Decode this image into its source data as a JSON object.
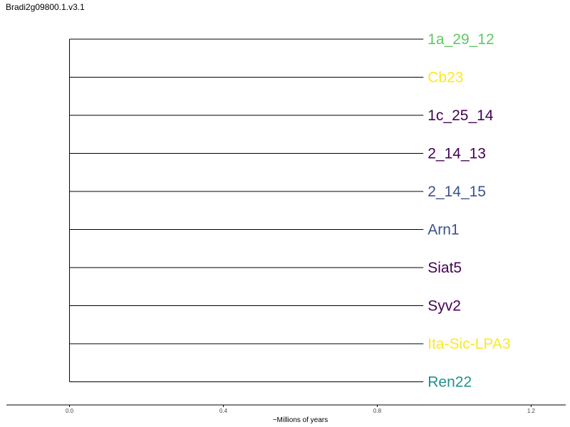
{
  "title": "Bradi2g09800.1.v3.1",
  "chart_data": {
    "type": "dendrogram",
    "title": "Bradi2g09800.1.v3.1",
    "xlabel": "~Millions of years",
    "xlim": [
      -0.164,
      1.29
    ],
    "x_ticks": [
      {
        "value": 0.0,
        "label": "0.0"
      },
      {
        "value": 0.4,
        "label": "0.4"
      },
      {
        "value": 0.8,
        "label": "0.8"
      },
      {
        "value": 1.2,
        "label": "1.2"
      }
    ],
    "root_x": 0.0,
    "tips": [
      {
        "name": "1a_29_12",
        "branch_end": 0.92,
        "color": "#5ec962"
      },
      {
        "name": "Cb23",
        "branch_end": 0.92,
        "color": "#fde725"
      },
      {
        "name": "1c_25_14",
        "branch_end": 0.92,
        "color": "#440154"
      },
      {
        "name": "2_14_13",
        "branch_end": 0.92,
        "color": "#440154"
      },
      {
        "name": "2_14_15",
        "branch_end": 0.92,
        "color": "#3b528b"
      },
      {
        "name": "Arn1",
        "branch_end": 0.92,
        "color": "#3b528b"
      },
      {
        "name": "Siat5",
        "branch_end": 0.92,
        "color": "#440154"
      },
      {
        "name": "Syv2",
        "branch_end": 0.92,
        "color": "#440154"
      },
      {
        "name": "Ita-Sic-LPA3",
        "branch_end": 0.92,
        "color": "#fde725"
      },
      {
        "name": "Ren22",
        "branch_end": 0.92,
        "color": "#21918c"
      }
    ]
  }
}
